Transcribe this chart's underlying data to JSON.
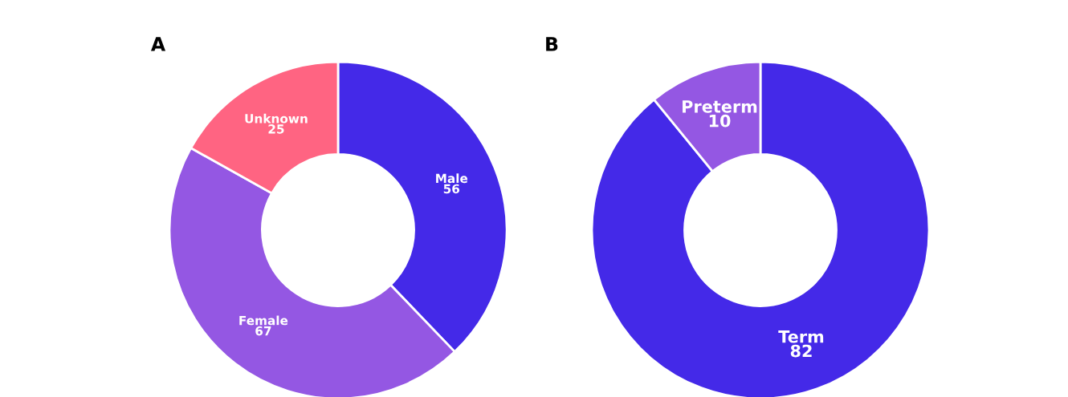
{
  "chart_data": [
    {
      "type": "donut",
      "title": "A",
      "categories": [
        "Male",
        "Female",
        "Unknown"
      ],
      "values": [
        56,
        67,
        25
      ],
      "colors": [
        "#4429e8",
        "#9457e3",
        "#ff6482"
      ],
      "data_labels": true
    },
    {
      "type": "donut",
      "title": "B",
      "categories": [
        "Term",
        "Preterm"
      ],
      "values": [
        82,
        10
      ],
      "colors": [
        "#4429e8",
        "#9457e3"
      ],
      "data_labels": true
    }
  ]
}
